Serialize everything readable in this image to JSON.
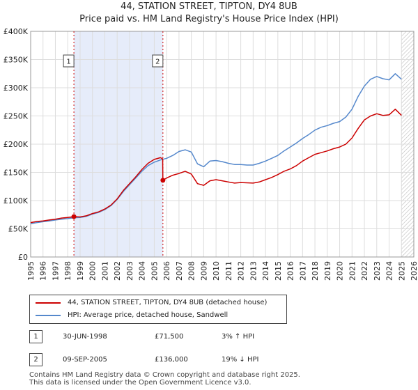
{
  "chart_data": {
    "type": "line",
    "title": "44, STATION STREET, TIPTON, DY4 8UB",
    "subtitle": "Price paid vs. HM Land Registry's House Price Index (HPI)",
    "xlabel": "",
    "ylabel": "",
    "xlim": [
      1995,
      2026
    ],
    "ylim": [
      0,
      400000
    ],
    "grid": true,
    "x_ticks": [
      1995,
      1996,
      1997,
      1998,
      1999,
      2000,
      2001,
      2002,
      2003,
      2004,
      2005,
      2006,
      2007,
      2008,
      2009,
      2010,
      2011,
      2012,
      2013,
      2014,
      2015,
      2016,
      2017,
      2018,
      2019,
      2020,
      2021,
      2022,
      2023,
      2024,
      2025,
      2026
    ],
    "y_ticks": [
      {
        "value": 0,
        "label": "£0"
      },
      {
        "value": 50000,
        "label": "£50K"
      },
      {
        "value": 100000,
        "label": "£100K"
      },
      {
        "value": 150000,
        "label": "£150K"
      },
      {
        "value": 200000,
        "label": "£200K"
      },
      {
        "value": 250000,
        "label": "£250K"
      },
      {
        "value": 300000,
        "label": "£300K"
      },
      {
        "value": 350000,
        "label": "£350K"
      },
      {
        "value": 400000,
        "label": "£400K"
      }
    ],
    "shaded_region": [
      1998.5,
      2005.7
    ],
    "forecast_from": 2025.0,
    "series": [
      {
        "name": "44, STATION STREET, TIPTON, DY4 8UB (detached house)",
        "color": "#cc0000",
        "x": [
          1995.0,
          1995.5,
          1996.0,
          1996.5,
          1997.0,
          1997.5,
          1998.0,
          1998.5,
          1999.0,
          1999.5,
          2000.0,
          2000.5,
          2001.0,
          2001.5,
          2002.0,
          2002.5,
          2003.0,
          2003.5,
          2004.0,
          2004.5,
          2005.0,
          2005.5,
          2005.68,
          2005.7,
          2006.0,
          2006.5,
          2007.0,
          2007.5,
          2008.0,
          2008.5,
          2009.0,
          2009.5,
          2010.0,
          2010.5,
          2011.0,
          2011.5,
          2012.0,
          2012.5,
          2013.0,
          2013.5,
          2014.0,
          2014.5,
          2015.0,
          2015.5,
          2016.0,
          2016.5,
          2017.0,
          2017.5,
          2018.0,
          2018.5,
          2019.0,
          2019.5,
          2020.0,
          2020.5,
          2021.0,
          2021.5,
          2022.0,
          2022.5,
          2023.0,
          2023.5,
          2024.0,
          2024.5,
          2025.0
        ],
        "y": [
          61000,
          63000,
          64000,
          65500,
          67000,
          69000,
          70000,
          71500,
          71000,
          73000,
          77000,
          80000,
          85000,
          92000,
          103000,
          118000,
          130000,
          142000,
          155000,
          166000,
          173000,
          176000,
          174000,
          136000,
          140000,
          145000,
          148000,
          152000,
          147000,
          130000,
          127000,
          135000,
          137000,
          135000,
          133000,
          131000,
          132000,
          131500,
          131000,
          133000,
          137000,
          141000,
          146000,
          152000,
          156000,
          162000,
          170000,
          176000,
          182000,
          185000,
          188000,
          192000,
          195000,
          200000,
          211000,
          228000,
          243000,
          250000,
          254000,
          251000,
          252000,
          262000,
          251000
        ]
      },
      {
        "name": "HPI: Average price, detached house, Sandwell",
        "color": "#5588cc",
        "x": [
          1995.0,
          1995.5,
          1996.0,
          1996.5,
          1997.0,
          1997.5,
          1998.0,
          1998.5,
          1999.0,
          1999.5,
          2000.0,
          2000.5,
          2001.0,
          2001.5,
          2002.0,
          2002.5,
          2003.0,
          2003.5,
          2004.0,
          2004.5,
          2005.0,
          2005.5,
          2006.0,
          2006.5,
          2007.0,
          2007.5,
          2008.0,
          2008.5,
          2009.0,
          2009.5,
          2010.0,
          2010.5,
          2011.0,
          2011.5,
          2012.0,
          2012.5,
          2013.0,
          2013.5,
          2014.0,
          2014.5,
          2015.0,
          2015.5,
          2016.0,
          2016.5,
          2017.0,
          2017.5,
          2018.0,
          2018.5,
          2019.0,
          2019.5,
          2020.0,
          2020.5,
          2021.0,
          2021.5,
          2022.0,
          2022.5,
          2023.0,
          2023.5,
          2024.0,
          2024.5,
          2025.0
        ],
        "y": [
          59000,
          61000,
          62500,
          64000,
          65500,
          67000,
          68000,
          69500,
          70000,
          72000,
          76000,
          79000,
          84000,
          91000,
          102000,
          116000,
          128000,
          140000,
          152000,
          162000,
          168000,
          172000,
          175000,
          180000,
          187000,
          190000,
          186000,
          165000,
          160000,
          170000,
          171000,
          169000,
          166000,
          164000,
          164000,
          163000,
          163000,
          166000,
          170000,
          175000,
          180000,
          188000,
          195000,
          202000,
          210000,
          217000,
          225000,
          230000,
          233000,
          237000,
          240000,
          248000,
          262000,
          285000,
          303000,
          315000,
          320000,
          316000,
          314000,
          325000,
          315000
        ]
      }
    ],
    "markers": [
      {
        "label": "1",
        "x": 1998.5,
        "y": 71500
      },
      {
        "label": "2",
        "x": 2005.7,
        "y": 136000
      }
    ]
  },
  "legend": {
    "property_label": "44, STATION STREET, TIPTON, DY4 8UB (detached house)",
    "hpi_label": "HPI: Average price, detached house, Sandwell",
    "property_color": "#cc0000",
    "hpi_color": "#5588cc"
  },
  "transactions": [
    {
      "num": "1",
      "date": "30-JUN-1998",
      "price": "£71,500",
      "hpi": "3% ↑ HPI"
    },
    {
      "num": "2",
      "date": "09-SEP-2005",
      "price": "£136,000",
      "hpi": "19% ↓ HPI"
    }
  ],
  "footer": {
    "line1": "Contains HM Land Registry data © Crown copyright and database right 2025.",
    "line2": "This data is licensed under the Open Government Licence v3.0."
  }
}
